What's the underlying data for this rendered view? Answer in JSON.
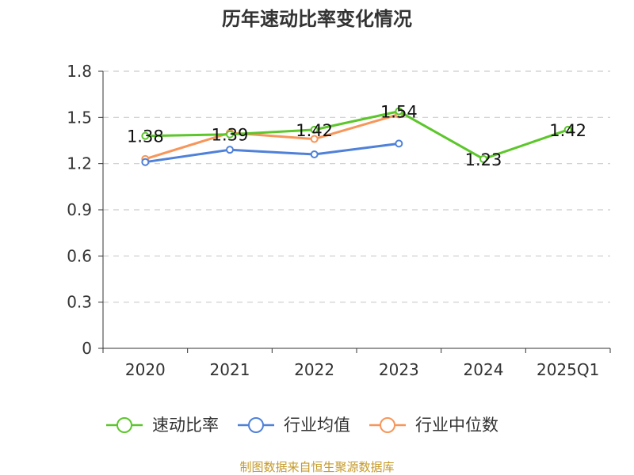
{
  "chart_data": {
    "type": "line",
    "title": "历年速动比率变化情况",
    "categories": [
      "2020",
      "2021",
      "2022",
      "2023",
      "2024",
      "2025Q1"
    ],
    "ylim": [
      0,
      1.8
    ],
    "yticks": [
      "0",
      "0.3",
      "0.6",
      "0.9",
      "1.2",
      "1.5",
      "1.8"
    ],
    "grid": true,
    "legend_position": "bottom",
    "series": [
      {
        "name": "速动比率",
        "color": "#5cc62b",
        "values": [
          1.38,
          1.39,
          1.42,
          1.54,
          1.23,
          1.42
        ],
        "labels": [
          "1.38",
          "1.39",
          "1.42",
          "1.54",
          "1.23",
          "1.42"
        ]
      },
      {
        "name": "行业均值",
        "color": "#4f81d9",
        "values": [
          1.21,
          1.29,
          1.26,
          1.33,
          null,
          null
        ]
      },
      {
        "name": "行业中位数",
        "color": "#f7965a",
        "values": [
          1.23,
          1.4,
          1.36,
          1.52,
          null,
          null
        ]
      }
    ]
  },
  "footer": {
    "source": "制图数据来自恒生聚源数据库",
    "color": "#c59a2a"
  }
}
